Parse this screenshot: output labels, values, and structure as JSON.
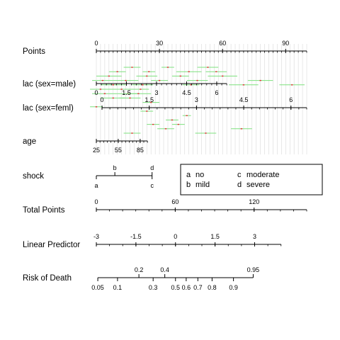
{
  "chart_data": {
    "type": "nomogram",
    "grid": true,
    "points_range": [
      0,
      100
    ],
    "rows": [
      {
        "label": "Points",
        "kind": "axis",
        "ticks": [
          {
            "v": 0,
            "label": "0"
          },
          {
            "v": 30,
            "label": "30"
          },
          {
            "v": 60,
            "label": "60"
          },
          {
            "v": 90,
            "label": "90"
          }
        ],
        "minor_step": 2,
        "scale": {
          "points_at_min": 0,
          "points_at_max": 100,
          "min": 0,
          "max": 100
        }
      },
      {
        "label": "lac (sex=male)",
        "kind": "axis",
        "ticks": [
          {
            "v": 0,
            "label": "0"
          },
          {
            "v": 1.5,
            "label": "1.5"
          },
          {
            "v": 3,
            "label": "3"
          },
          {
            "v": 4.5,
            "label": "4.5"
          },
          {
            "v": 6,
            "label": "6"
          }
        ],
        "minor_step": 0.25,
        "scale": {
          "points_at_min": 0,
          "points_at_max": 62,
          "min": 0,
          "max": 6.5
        }
      },
      {
        "label": "lac (sex=feml)",
        "kind": "axis",
        "ticks": [
          {
            "v": 0,
            "label": "0"
          },
          {
            "v": 1.5,
            "label": "1.5"
          },
          {
            "v": 3,
            "label": "3"
          },
          {
            "v": 4.5,
            "label": "4.5"
          },
          {
            "v": 6,
            "label": "6"
          }
        ],
        "minor_step": 0.25,
        "scale": {
          "points_at_min": 2.7,
          "points_at_max": 100,
          "min": 0,
          "max": 6.5
        }
      },
      {
        "label": "age",
        "kind": "axis",
        "ticks": [
          {
            "v": 25,
            "label": "25"
          },
          {
            "v": 55,
            "label": "55"
          },
          {
            "v": 85,
            "label": "85"
          }
        ],
        "minor_step": 5,
        "scale": {
          "points_at_min": 0,
          "points_at_max": 24.3,
          "min": 25,
          "max": 95
        }
      },
      {
        "label": "shock",
        "kind": "categorical",
        "levels": [
          {
            "code": "a",
            "points": 0,
            "side": "below"
          },
          {
            "code": "b",
            "points": 8.8,
            "side": "above"
          },
          {
            "code": "c",
            "points": 26.5,
            "side": "below"
          },
          {
            "code": "d",
            "points": 26.5,
            "side": "above"
          }
        ]
      },
      {
        "label": "Total Points",
        "kind": "axis",
        "ticks": [
          {
            "v": 0,
            "label": "0"
          },
          {
            "v": 60,
            "label": "60"
          },
          {
            "v": 120,
            "label": "120"
          }
        ],
        "minor_step": 10,
        "scale": {
          "points_at_min": 0,
          "points_at_max": 100,
          "min": 0,
          "max": 160
        }
      },
      {
        "label": "Linear Predictor",
        "kind": "axis",
        "ticks": [
          {
            "v": -3,
            "label": "-3"
          },
          {
            "v": -1.5,
            "label": "-1.5"
          },
          {
            "v": 0,
            "label": "0"
          },
          {
            "v": 1.5,
            "label": "1.5"
          },
          {
            "v": 3,
            "label": "3"
          }
        ],
        "minor_step": 0.5,
        "scale": {
          "points_at_min": 0,
          "points_at_max": 87.8,
          "min": -3,
          "max": 4
        }
      },
      {
        "label": "Risk of Death",
        "kind": "prob",
        "ticks": [
          {
            "v": 0.05,
            "label": "0.05",
            "side": "below"
          },
          {
            "v": 0.1,
            "label": "0.1",
            "side": "below"
          },
          {
            "v": 0.2,
            "label": "0.2",
            "side": "above"
          },
          {
            "v": 0.3,
            "label": "0.3",
            "side": "below"
          },
          {
            "v": 0.4,
            "label": "0.4",
            "side": "above"
          },
          {
            "v": 0.5,
            "label": "0.5",
            "side": "below"
          },
          {
            "v": 0.6,
            "label": "0.6",
            "side": "below"
          },
          {
            "v": 0.7,
            "label": "0.7",
            "side": "below"
          },
          {
            "v": 0.8,
            "label": "0.8",
            "side": "below"
          },
          {
            "v": 0.9,
            "label": "0.9",
            "side": "below"
          },
          {
            "v": 0.95,
            "label": "0.95",
            "side": "above"
          }
        ],
        "scale": {
          "lp_axis_row": 6
        }
      }
    ],
    "legend": {
      "entries": [
        {
          "code": "a",
          "text": "no"
        },
        {
          "code": "c",
          "text": "moderate"
        },
        {
          "code": "b",
          "text": "mild"
        },
        {
          "code": "d",
          "text": "severe"
        }
      ]
    },
    "ci_marks": [
      {
        "row": 0,
        "center": 17,
        "half": 4
      },
      {
        "row": 0,
        "center": 34,
        "half": 3
      },
      {
        "row": 0,
        "center": 53,
        "half": 5
      },
      {
        "row": 1,
        "center": 10,
        "half": 4
      },
      {
        "row": 1,
        "center": 25,
        "half": 3
      },
      {
        "row": 1,
        "center": 44,
        "half": 6
      },
      {
        "row": 1,
        "center": 57,
        "half": 5
      },
      {
        "row": 2,
        "center": 6,
        "half": 6
      },
      {
        "row": 2,
        "center": 24,
        "half": 5
      },
      {
        "row": 2,
        "center": 40,
        "half": 4
      },
      {
        "row": 2,
        "center": 60,
        "half": 7
      },
      {
        "row": 3,
        "center": 3,
        "half": 5
      },
      {
        "row": 3,
        "center": 14,
        "half": 6
      },
      {
        "row": 3,
        "center": 30,
        "half": 4
      },
      {
        "row": 3,
        "center": 48,
        "half": 5
      },
      {
        "row": 3,
        "center": 78,
        "half": 6
      },
      {
        "row": 4,
        "center": 8,
        "half": 6
      },
      {
        "row": 4,
        "center": 22,
        "half": 5
      },
      {
        "row": 4,
        "center": 45,
        "half": 4
      },
      {
        "row": 4,
        "center": 70,
        "half": 7
      },
      {
        "row": 4,
        "center": 93,
        "half": 6
      },
      {
        "row": 5,
        "center": 2,
        "half": 5
      },
      {
        "row": 5,
        "center": 12,
        "half": 6
      },
      {
        "row": 5,
        "center": 21,
        "half": 4
      },
      {
        "row": 6,
        "center": 4,
        "half": 6
      },
      {
        "row": 6,
        "center": 15,
        "half": 5
      },
      {
        "row": 6,
        "center": 20,
        "half": 6
      },
      {
        "row": 7,
        "center": 8,
        "half": 6
      },
      {
        "row": 7,
        "center": 16,
        "half": 5
      },
      {
        "row": 8,
        "center": 26,
        "half": 4
      },
      {
        "row": 9,
        "center": 0,
        "half": 3
      },
      {
        "row": 10,
        "center": 24,
        "half": 3
      },
      {
        "row": 11,
        "center": 43,
        "half": 2
      },
      {
        "row": 12,
        "center": 36,
        "half": 3
      },
      {
        "row": 13,
        "center": 27,
        "half": 3
      },
      {
        "row": 13,
        "center": 39,
        "half": 3
      },
      {
        "row": 14,
        "center": 33,
        "half": 4
      },
      {
        "row": 14,
        "center": 69,
        "half": 5
      },
      {
        "row": 15,
        "center": 17,
        "half": 4
      },
      {
        "row": 15,
        "center": 52,
        "half": 5
      }
    ]
  }
}
